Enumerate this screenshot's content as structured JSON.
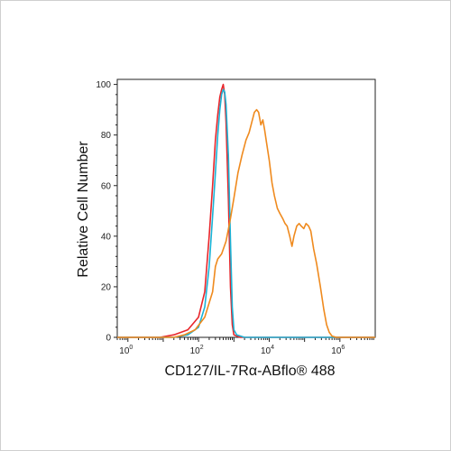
{
  "chart_data": {
    "type": "line",
    "title": "",
    "xlabel": "CD127/IL-7Rα-ABflo® 488",
    "ylabel": "Relative Cell Number",
    "x_scale": "log",
    "xlim": [
      0.5,
      10000000
    ],
    "ylim": [
      0,
      102
    ],
    "x_tick_labels": [
      {
        "value": 1,
        "base": "10",
        "exp": "0"
      },
      {
        "value": 100,
        "base": "10",
        "exp": "2"
      },
      {
        "value": 10000,
        "base": "10",
        "exp": "4"
      },
      {
        "value": 1000000,
        "base": "10",
        "exp": "6"
      }
    ],
    "y_ticks": [
      0,
      20,
      40,
      60,
      80,
      100
    ],
    "y_tick_labels": [
      "0",
      "20",
      "40",
      "60",
      "80",
      "100"
    ],
    "grid": false,
    "series": [
      {
        "color": "#e8262b",
        "points": [
          [
            0.5,
            0
          ],
          [
            8,
            0
          ],
          [
            20,
            1
          ],
          [
            50,
            3
          ],
          [
            100,
            8
          ],
          [
            150,
            18
          ],
          [
            200,
            40
          ],
          [
            250,
            60
          ],
          [
            300,
            78
          ],
          [
            350,
            88
          ],
          [
            400,
            95
          ],
          [
            450,
            98
          ],
          [
            500,
            100
          ],
          [
            550,
            96
          ],
          [
            600,
            85
          ],
          [
            700,
            55
          ],
          [
            800,
            20
          ],
          [
            900,
            5
          ],
          [
            1000,
            1
          ],
          [
            1500,
            0
          ],
          [
            10000000,
            0
          ]
        ]
      },
      {
        "color": "#1ab3d6",
        "points": [
          [
            0.5,
            0
          ],
          [
            20,
            0
          ],
          [
            50,
            1
          ],
          [
            100,
            4
          ],
          [
            150,
            12
          ],
          [
            200,
            28
          ],
          [
            250,
            48
          ],
          [
            300,
            65
          ],
          [
            350,
            80
          ],
          [
            400,
            90
          ],
          [
            450,
            96
          ],
          [
            500,
            98
          ],
          [
            550,
            97
          ],
          [
            600,
            92
          ],
          [
            700,
            72
          ],
          [
            800,
            38
          ],
          [
            900,
            12
          ],
          [
            1000,
            3
          ],
          [
            1200,
            1
          ],
          [
            2000,
            0
          ],
          [
            10000000,
            0
          ]
        ]
      },
      {
        "color": "#ef8a1e",
        "points": [
          [
            0.5,
            0
          ],
          [
            20,
            0
          ],
          [
            40,
            1
          ],
          [
            80,
            3
          ],
          [
            150,
            8
          ],
          [
            250,
            18
          ],
          [
            300,
            28
          ],
          [
            350,
            31
          ],
          [
            450,
            33
          ],
          [
            600,
            38
          ],
          [
            800,
            47
          ],
          [
            1000,
            55
          ],
          [
            1300,
            65
          ],
          [
            1700,
            72
          ],
          [
            2200,
            78
          ],
          [
            2700,
            81
          ],
          [
            3200,
            85
          ],
          [
            3800,
            89
          ],
          [
            4400,
            90
          ],
          [
            5000,
            89
          ],
          [
            5800,
            84
          ],
          [
            6600,
            86
          ],
          [
            7400,
            82
          ],
          [
            8400,
            77
          ],
          [
            10000,
            70
          ],
          [
            12000,
            61
          ],
          [
            14000,
            56
          ],
          [
            17000,
            51
          ],
          [
            20000,
            49
          ],
          [
            24000,
            47
          ],
          [
            28000,
            45
          ],
          [
            32000,
            44
          ],
          [
            38000,
            40
          ],
          [
            44000,
            36
          ],
          [
            50000,
            40
          ],
          [
            60000,
            44
          ],
          [
            70000,
            45
          ],
          [
            80000,
            44
          ],
          [
            95000,
            43
          ],
          [
            110000,
            45
          ],
          [
            130000,
            44
          ],
          [
            150000,
            42
          ],
          [
            180000,
            35
          ],
          [
            220000,
            29
          ],
          [
            280000,
            20
          ],
          [
            350000,
            11
          ],
          [
            420000,
            5
          ],
          [
            500000,
            2
          ],
          [
            600000,
            0.5
          ],
          [
            800000,
            0
          ],
          [
            10000000,
            0
          ]
        ]
      }
    ]
  }
}
